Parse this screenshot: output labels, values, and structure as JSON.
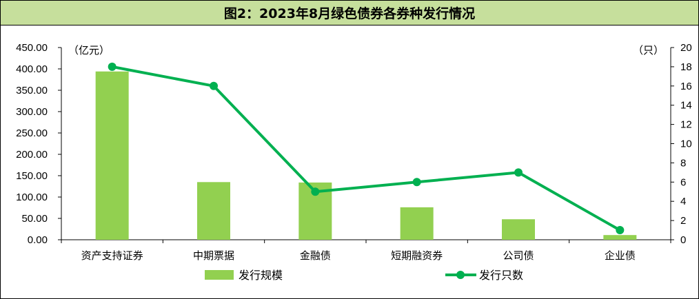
{
  "title": "图2：2023年8月绿色债券各券种发行情况",
  "chart_data": {
    "type": "bar",
    "title": "图2：2023年8月绿色债券各券种发行情况",
    "categories": [
      "资产支持证券",
      "中期票据",
      "金融债",
      "短期融资券",
      "公司债",
      "企业债"
    ],
    "y_left_label": "（亿元）",
    "y_right_label": "（只）",
    "y_left_range": [
      0,
      450
    ],
    "y_right_range": [
      0,
      20
    ],
    "y_left_ticks": [
      "0.00",
      "50.00",
      "100.00",
      "150.00",
      "200.00",
      "250.00",
      "300.00",
      "350.00",
      "400.00",
      "450.00"
    ],
    "y_right_ticks": [
      "0",
      "2",
      "4",
      "6",
      "8",
      "10",
      "12",
      "14",
      "16",
      "18",
      "20"
    ],
    "series": [
      {
        "name": "发行规模",
        "type": "bar",
        "axis": "left",
        "color": "#92d050",
        "values": [
          394,
          135,
          134,
          76,
          48,
          11
        ]
      },
      {
        "name": "发行只数",
        "type": "line",
        "axis": "right",
        "color": "#00b050",
        "values": [
          18,
          16,
          5,
          6,
          7,
          1
        ]
      }
    ],
    "grid": false,
    "legend_position": "bottom"
  }
}
